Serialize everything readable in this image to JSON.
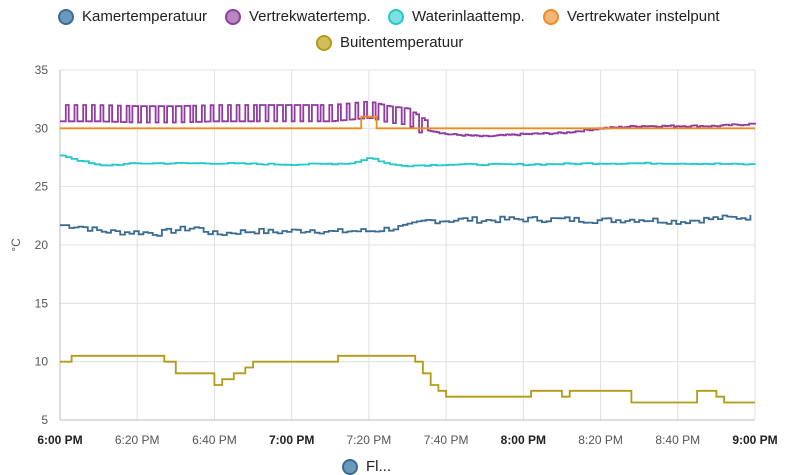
{
  "legend": [
    {
      "name": "Kamertemperatuur",
      "color": "#3a6b93",
      "fill": "#6b98bd"
    },
    {
      "name": "Vertrekwatertemp.",
      "color": "#8f3b9f",
      "fill": "#b787c4"
    },
    {
      "name": "Waterinlaattemp.",
      "color": "#22c7c9",
      "fill": "#7fe0e0"
    },
    {
      "name": "Vertrekwater instelpunt",
      "color": "#f08c1e",
      "fill": "#f5b47a"
    },
    {
      "name": "Buitentemperatuur",
      "color": "#b39a17",
      "fill": "#d2bf5c"
    }
  ],
  "bottom_legend": {
    "label": "Fl...",
    "color": "#3a6b93",
    "fill": "#6b98bd"
  },
  "chart_data": {
    "type": "line",
    "step": true,
    "ylabel": "°C",
    "ylim": [
      5,
      35
    ],
    "yticks": [
      5,
      10,
      15,
      20,
      25,
      30,
      35
    ],
    "xlim": [
      "18:00",
      "21:00"
    ],
    "xticks": [
      {
        "t": "18:00",
        "label": "6:00 PM",
        "bold": true
      },
      {
        "t": "18:20",
        "label": "6:20 PM",
        "bold": false
      },
      {
        "t": "18:40",
        "label": "6:40 PM",
        "bold": false
      },
      {
        "t": "19:00",
        "label": "7:00 PM",
        "bold": true
      },
      {
        "t": "19:20",
        "label": "7:20 PM",
        "bold": false
      },
      {
        "t": "19:40",
        "label": "7:40 PM",
        "bold": false
      },
      {
        "t": "20:00",
        "label": "8:00 PM",
        "bold": true
      },
      {
        "t": "20:20",
        "label": "8:20 PM",
        "bold": false
      },
      {
        "t": "20:40",
        "label": "8:40 PM",
        "bold": false
      },
      {
        "t": "21:00",
        "label": "9:00 PM",
        "bold": true
      }
    ],
    "grid": true,
    "series": [
      {
        "name": "Kamertemperatuur",
        "color": "#3a6b93",
        "x": [
          "18:00",
          "18:05",
          "18:10",
          "18:15",
          "18:20",
          "18:25",
          "18:30",
          "18:35",
          "18:40",
          "18:45",
          "18:50",
          "18:55",
          "19:00",
          "19:05",
          "19:10",
          "19:15",
          "19:20",
          "19:25",
          "19:30",
          "19:35",
          "19:40",
          "19:45",
          "19:50",
          "19:55",
          "20:00",
          "20:10",
          "20:20",
          "20:30",
          "20:40",
          "20:50",
          "21:00"
        ],
        "values": [
          21.7,
          21.6,
          21.2,
          21.1,
          21.1,
          21.0,
          21.3,
          21.5,
          20.9,
          21.1,
          21.2,
          21.1,
          21.2,
          21.3,
          21.1,
          21.2,
          21.2,
          21.4,
          21.6,
          22.1,
          22.1,
          22.2,
          22.1,
          22.2,
          22.2,
          22.2,
          22.1,
          22.2,
          22.0,
          22.3,
          22.4
        ],
        "noise": 0.25
      },
      {
        "name": "Vertrekwatertemp.",
        "color": "#8f3b9f",
        "x": [
          "18:00",
          "18:10",
          "18:20",
          "18:30",
          "18:40",
          "18:50",
          "19:00",
          "19:10",
          "19:20",
          "19:25",
          "19:30",
          "19:35",
          "19:40",
          "19:50",
          "20:00",
          "20:10",
          "20:20",
          "20:30",
          "20:40",
          "20:50",
          "21:00"
        ],
        "values": [
          31.3,
          31.3,
          31.2,
          31.2,
          31.3,
          31.3,
          31.3,
          31.3,
          31.6,
          31.2,
          31.0,
          29.9,
          29.5,
          29.3,
          29.5,
          29.6,
          30.0,
          30.2,
          30.2,
          30.2,
          30.4
        ],
        "oscillate_until": "19:35",
        "amplitude": 0.7
      },
      {
        "name": "Waterinlaattemp.",
        "color": "#22c7c9",
        "x": [
          "18:00",
          "18:05",
          "18:10",
          "18:20",
          "18:40",
          "19:00",
          "19:15",
          "19:20",
          "19:25",
          "19:30",
          "19:40",
          "20:00",
          "20:20",
          "20:40",
          "21:00"
        ],
        "values": [
          27.7,
          27.2,
          26.8,
          27.0,
          27.0,
          26.9,
          27.0,
          27.5,
          26.9,
          26.8,
          26.9,
          26.9,
          27.0,
          27.0,
          26.9
        ]
      },
      {
        "name": "Vertrekwater instelpunt",
        "color": "#f08c1e",
        "x": [
          "18:00",
          "19:18",
          "19:22",
          "21:00"
        ],
        "values": [
          30.0,
          31.0,
          30.0,
          30.0
        ]
      },
      {
        "name": "Buitentemperatuur",
        "color": "#b39a17",
        "x": [
          "18:00",
          "18:03",
          "18:10",
          "18:25",
          "18:27",
          "18:30",
          "18:40",
          "18:42",
          "18:45",
          "18:48",
          "18:50",
          "19:12",
          "19:30",
          "19:32",
          "19:34",
          "19:36",
          "19:38",
          "19:40",
          "20:00",
          "20:02",
          "20:10",
          "20:12",
          "20:28",
          "20:30",
          "20:45",
          "20:50",
          "20:52",
          "21:00"
        ],
        "values": [
          10.0,
          10.5,
          10.5,
          10.5,
          10.0,
          9.0,
          8.0,
          8.5,
          9.0,
          9.5,
          10.0,
          10.5,
          10.5,
          10.0,
          9.0,
          8.0,
          7.5,
          7.0,
          7.0,
          7.5,
          7.0,
          7.5,
          6.5,
          6.5,
          7.5,
          7.0,
          6.5,
          6.5
        ]
      }
    ]
  }
}
